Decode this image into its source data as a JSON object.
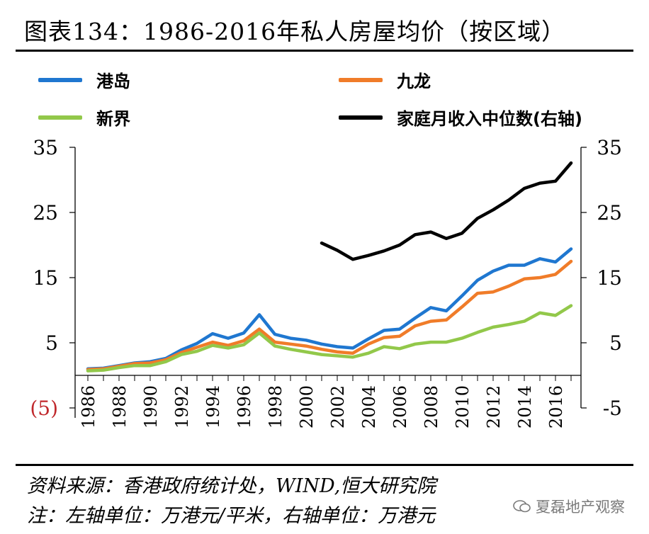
{
  "header": {
    "title": "图表134：1986-2016年私人房屋均价（按区域）"
  },
  "footer": {
    "source": "资料来源：香港政府统计处，WIND,恒大研究院",
    "note": "注：左轴单位：万港元/平米，右轴单位：万港元",
    "watermark": "夏磊地产观察"
  },
  "chart_data": {
    "type": "line",
    "x": [
      1986,
      1987,
      1988,
      1989,
      1990,
      1991,
      1992,
      1993,
      1994,
      1995,
      1996,
      1997,
      1998,
      1999,
      2000,
      2001,
      2002,
      2003,
      2004,
      2005,
      2006,
      2007,
      2008,
      2009,
      2010,
      2011,
      2012,
      2013,
      2014,
      2015,
      2016,
      2017
    ],
    "x_tick_labels": [
      "1986",
      "1988",
      "1990",
      "1992",
      "1994",
      "1996",
      "1998",
      "2000",
      "2002",
      "2004",
      "2006",
      "2008",
      "2010",
      "2012",
      "2014",
      "2016"
    ],
    "left_axis": {
      "ticks": [
        "35",
        "25",
        "15",
        "5",
        "(5)"
      ],
      "ylim": [
        -5,
        35
      ]
    },
    "right_axis": {
      "ticks": [
        "35",
        "25",
        "15",
        "5",
        "-5"
      ],
      "ylim": [
        -5,
        35
      ]
    },
    "legend_position": "top",
    "grid": false,
    "series": [
      {
        "name": "港岛",
        "axis": "left",
        "color": "#1f77d0",
        "values": [
          1.0,
          1.1,
          1.5,
          1.9,
          2.1,
          2.6,
          3.9,
          4.9,
          6.4,
          5.7,
          6.5,
          9.3,
          6.3,
          5.7,
          5.4,
          4.8,
          4.4,
          4.2,
          5.6,
          6.9,
          7.1,
          8.8,
          10.4,
          9.9,
          12.2,
          14.6,
          16.0,
          16.9,
          16.9,
          17.9,
          17.4,
          19.4
        ]
      },
      {
        "name": "九龙",
        "axis": "left",
        "color": "#f07c29",
        "values": [
          0.9,
          1.0,
          1.4,
          1.8,
          1.9,
          2.4,
          3.5,
          4.3,
          5.1,
          4.6,
          5.3,
          7.1,
          5.1,
          4.8,
          4.5,
          4.0,
          3.6,
          3.4,
          4.8,
          5.8,
          6.0,
          7.6,
          8.3,
          8.5,
          10.5,
          12.6,
          12.8,
          13.7,
          14.8,
          15.0,
          15.5,
          17.5
        ]
      },
      {
        "name": "新界",
        "axis": "left",
        "color": "#92c84a",
        "values": [
          0.7,
          0.8,
          1.2,
          1.5,
          1.5,
          2.1,
          3.2,
          3.7,
          4.6,
          4.2,
          4.7,
          6.5,
          4.5,
          4.0,
          3.6,
          3.2,
          3.0,
          2.8,
          3.4,
          4.4,
          4.1,
          4.8,
          5.1,
          5.1,
          5.7,
          6.6,
          7.4,
          7.8,
          8.3,
          9.6,
          9.2,
          10.7
        ]
      },
      {
        "name": "家庭月收入中位数(右轴)",
        "axis": "right",
        "color": "#000000",
        "values": [
          null,
          null,
          null,
          null,
          null,
          null,
          null,
          null,
          null,
          null,
          null,
          null,
          null,
          null,
          null,
          20.3,
          19.2,
          17.8,
          18.4,
          19.1,
          20.0,
          21.6,
          22.0,
          21.0,
          21.8,
          24.1,
          25.4,
          26.9,
          28.7,
          29.5,
          29.8,
          32.6
        ]
      }
    ]
  }
}
